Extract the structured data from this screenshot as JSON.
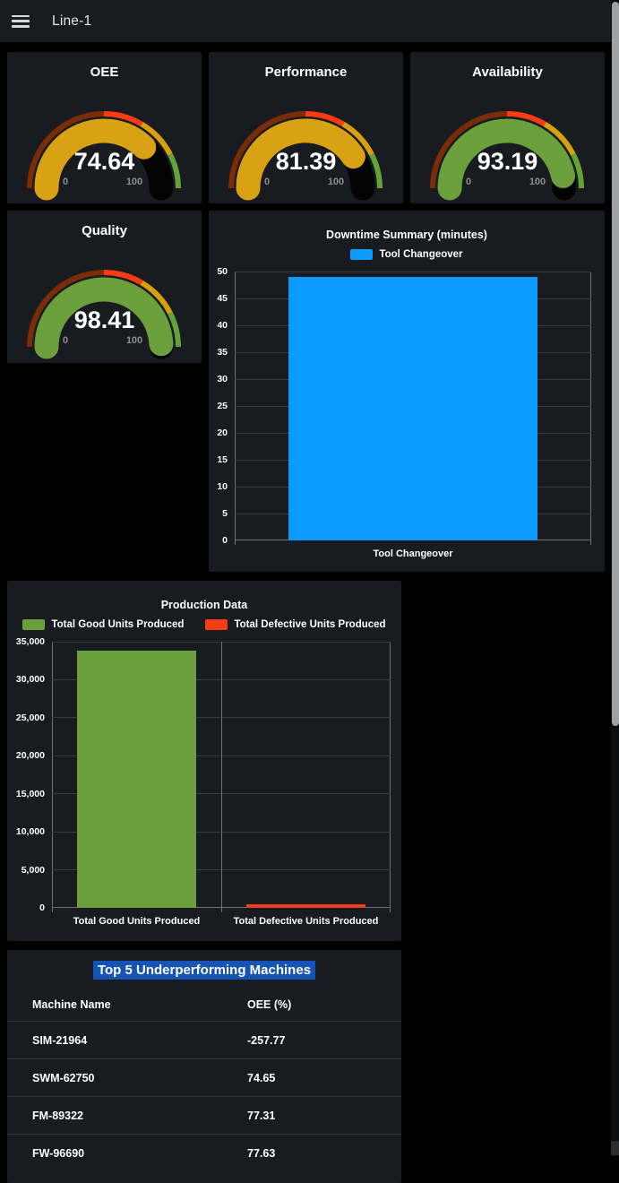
{
  "topbar": {
    "title": "Line-1"
  },
  "gauges": [
    {
      "title": "OEE",
      "value": "74.64",
      "value_num": 74.64,
      "min": "0",
      "max": "100",
      "color": "#d9a114"
    },
    {
      "title": "Performance",
      "value": "81.39",
      "value_num": 81.39,
      "min": "0",
      "max": "100",
      "color": "#d9a114"
    },
    {
      "title": "Availability",
      "value": "93.19",
      "value_num": 93.19,
      "min": "0",
      "max": "100",
      "color": "#6ba03c"
    },
    {
      "title": "Quality",
      "value": "98.41",
      "value_num": 98.41,
      "min": "0",
      "max": "100",
      "color": "#6ba03c"
    }
  ],
  "gauge_thresholds": [
    {
      "to": 50,
      "color": "#7a2c06"
    },
    {
      "to": 67,
      "color": "#fb3b14"
    },
    {
      "to": 85,
      "color": "#d7a10e"
    },
    {
      "to": 100,
      "color": "#63a33a"
    }
  ],
  "chart_data": [
    {
      "type": "bar",
      "title": "Downtime Summary (minutes)",
      "legend": [
        {
          "label": "Tool Changeover",
          "color": "#0d9bff"
        }
      ],
      "categories": [
        "Tool Changeover"
      ],
      "values": [
        49
      ],
      "bar_colors": [
        "#0d9bff"
      ],
      "ylim": [
        0,
        50
      ],
      "ytick_step": 5,
      "grid": true,
      "legend_position": "top"
    },
    {
      "type": "bar",
      "title": "Production Data",
      "legend": [
        {
          "label": "Total Good Units Produced",
          "color": "#6b9e3c"
        },
        {
          "label": "Total Defective Units Produced",
          "color": "#f53d17"
        }
      ],
      "categories": [
        "Total Good Units Produced",
        "Total Defective Units Produced"
      ],
      "values": [
        33800,
        500
      ],
      "bar_colors": [
        "#6b9e3c",
        "#f53d17"
      ],
      "ylim": [
        0,
        35000
      ],
      "ytick_step": 5000,
      "grid": true,
      "legend_position": "top"
    }
  ],
  "table": {
    "title": "Top 5 Underperforming Machines",
    "title_highlight_color": "#1553b6",
    "columns": [
      "Machine Name",
      "OEE (%)"
    ],
    "rows": [
      [
        "SIM-21964",
        "-257.77"
      ],
      [
        "SWM-62750",
        "74.65"
      ],
      [
        "FM-89322",
        "77.31"
      ],
      [
        "FW-96690",
        "77.63"
      ]
    ]
  }
}
